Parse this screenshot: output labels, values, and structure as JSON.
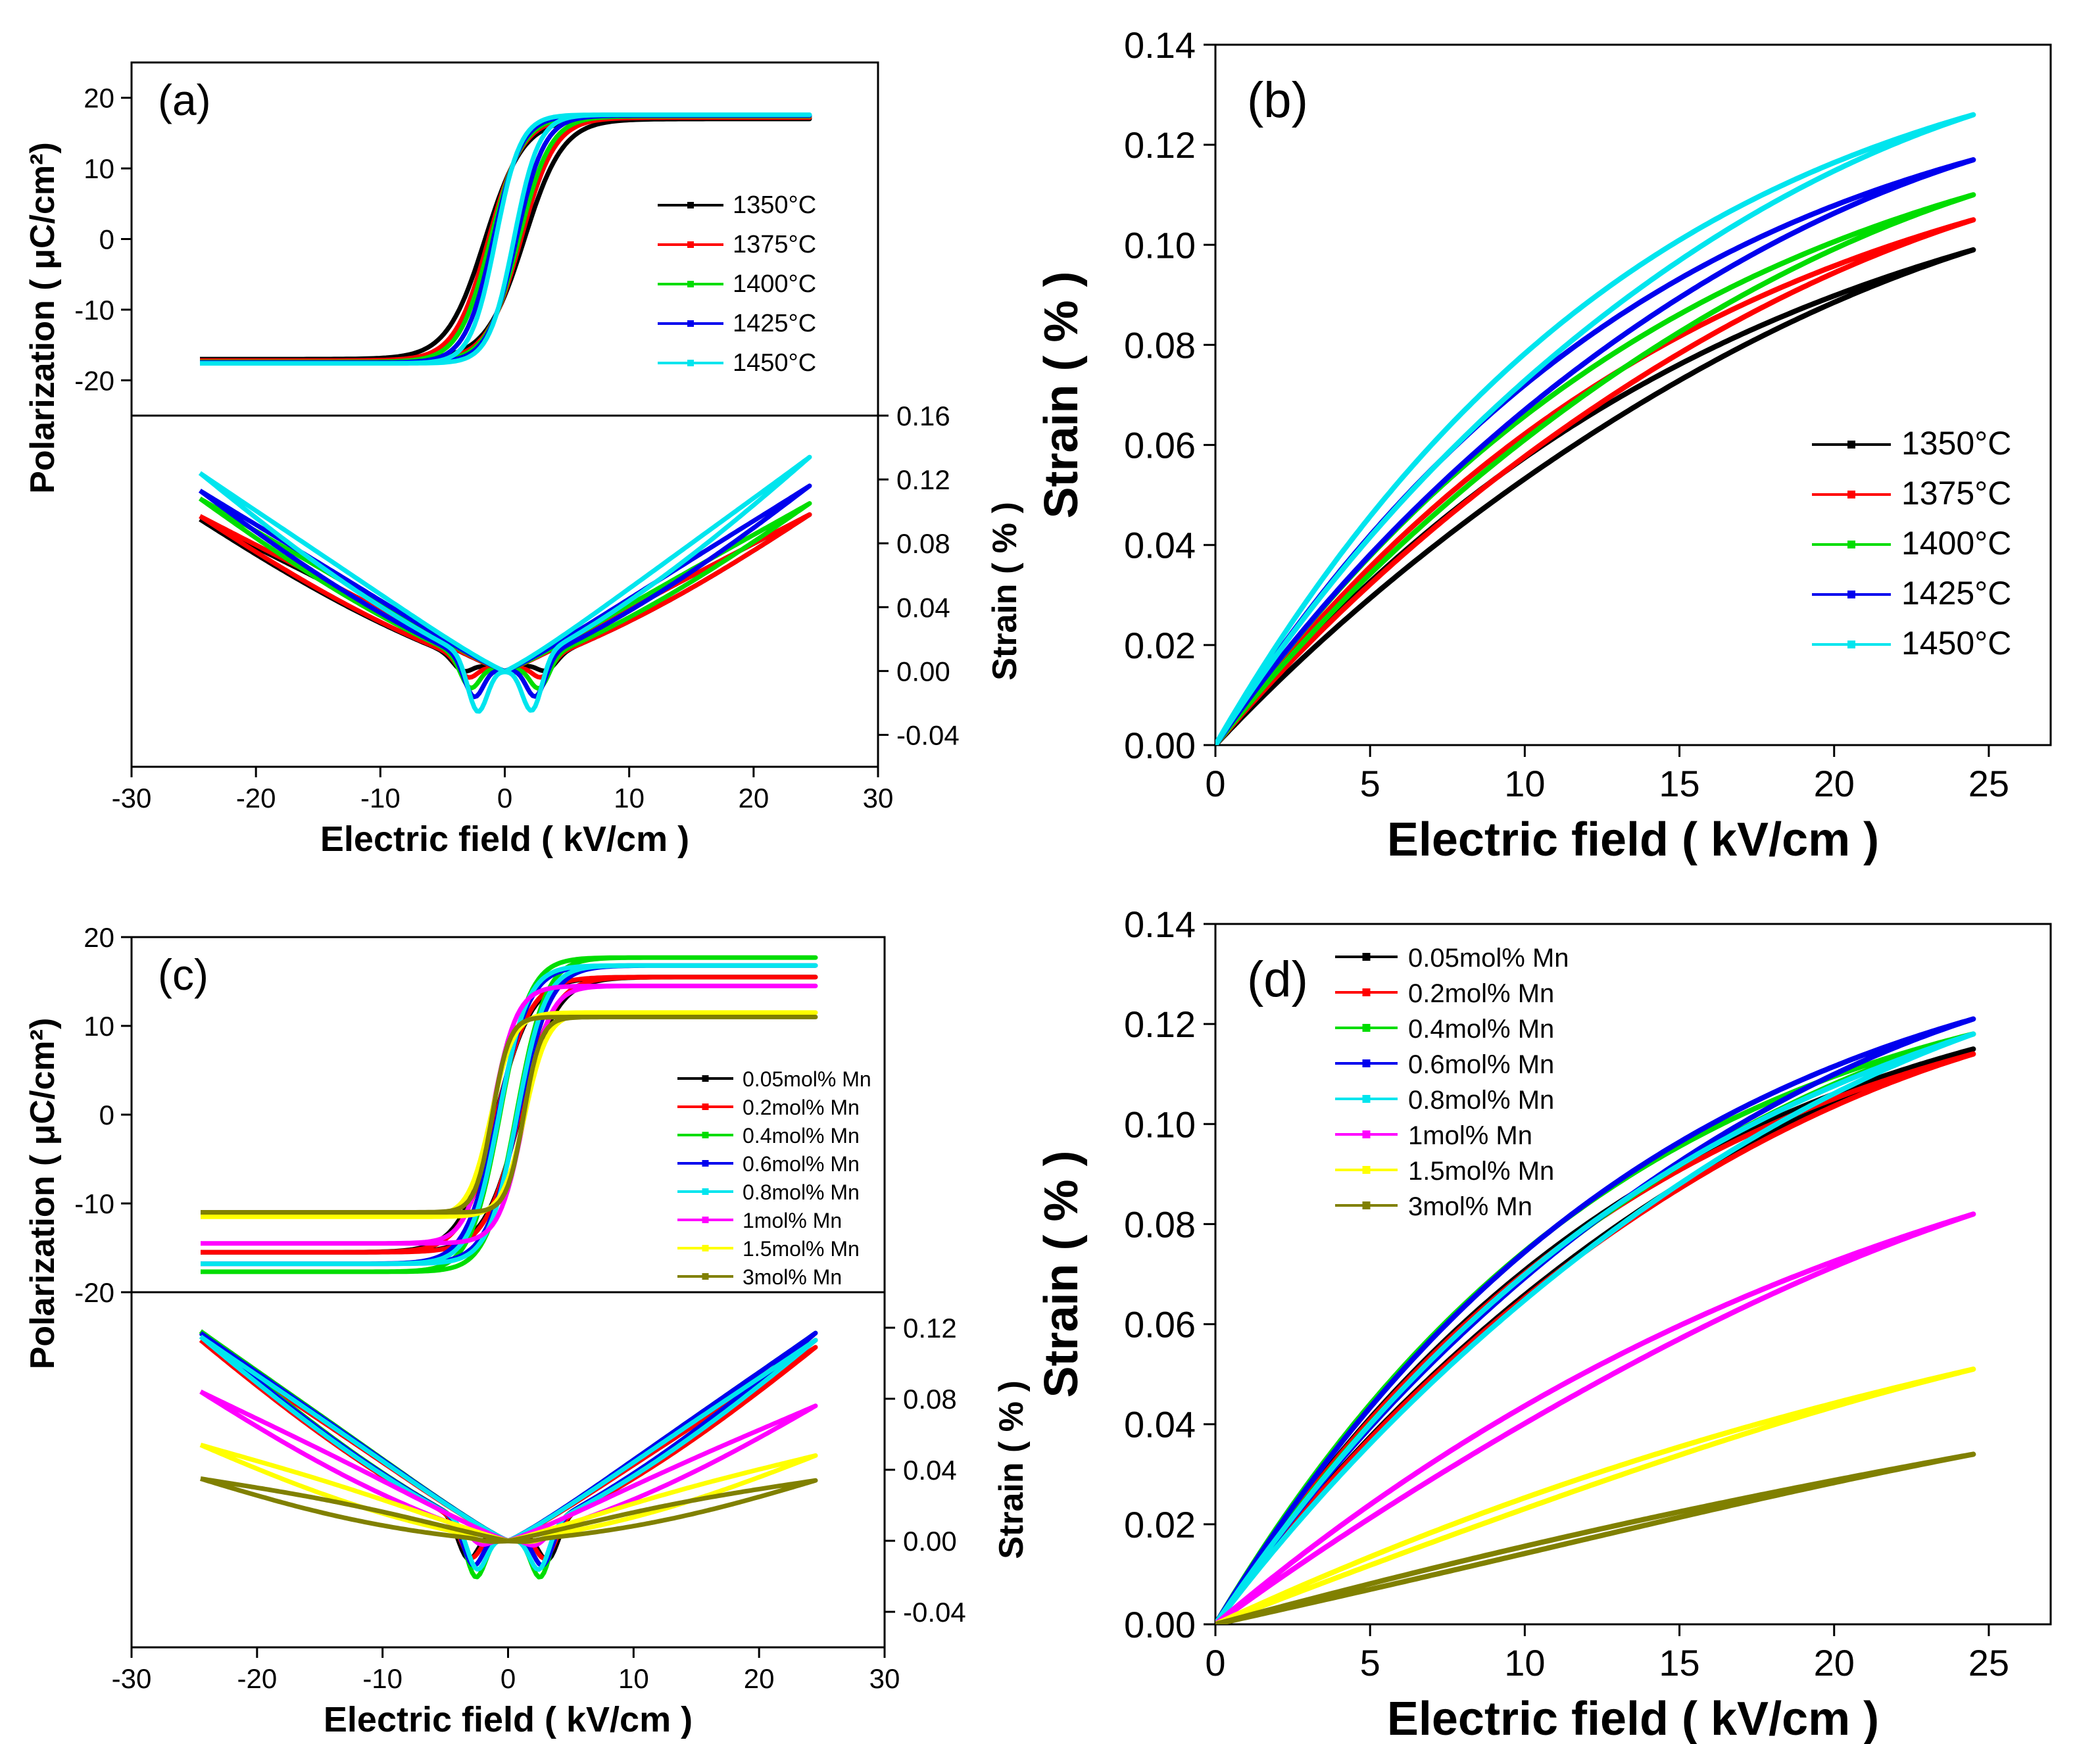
{
  "chart_data": [
    {
      "id": "a",
      "type": "line",
      "panel_label": "(a)",
      "xlabel": "Electric field ( kV/cm )",
      "ylabel_top": "Polarization ( μC/cm²)",
      "ylabel_bottom": "Strain ( % )",
      "xlim": [
        -30,
        30
      ],
      "x_ticks": [
        "-30",
        "-20",
        "-10",
        "0",
        "10",
        "20",
        "30"
      ],
      "top_ylim": [
        -25,
        25
      ],
      "top_y_ticks": [
        "-20",
        "-10",
        "0",
        "10",
        "20"
      ],
      "bottom_ylim": [
        -0.06,
        0.16
      ],
      "bottom_y_ticks": [
        "-0.04",
        "0.00",
        "0.04",
        "0.08",
        "0.12",
        "0.16"
      ],
      "legend_position": "right",
      "series": [
        {
          "name": "1350°C",
          "color": "#000000",
          "pr": 9,
          "ec": 3.4,
          "psat": 17.0,
          "smax_pos": 0.098,
          "smax_neg": 0.095,
          "dip": -0.008
        },
        {
          "name": "1375°C",
          "color": "#ff0000",
          "pr": 9.5,
          "ec": 3.0,
          "psat": 17.2,
          "smax_pos": 0.098,
          "smax_neg": 0.097,
          "dip": -0.011
        },
        {
          "name": "1400°C",
          "color": "#00dd00",
          "pr": 10,
          "ec": 2.8,
          "psat": 17.4,
          "smax_pos": 0.105,
          "smax_neg": 0.108,
          "dip": -0.018
        },
        {
          "name": "1425°C",
          "color": "#0000ee",
          "pr": 10.5,
          "ec": 2.5,
          "psat": 17.5,
          "smax_pos": 0.116,
          "smax_neg": 0.113,
          "dip": -0.023
        },
        {
          "name": "1450°C",
          "color": "#00e5ee",
          "pr": 11,
          "ec": 2.2,
          "psat": 17.6,
          "smax_pos": 0.134,
          "smax_neg": 0.124,
          "dip": -0.032
        }
      ]
    },
    {
      "id": "b",
      "type": "line",
      "panel_label": "(b)",
      "xlabel": "Electric field ( kV/cm )",
      "ylabel": "Strain ( % )",
      "xlim": [
        0,
        27
      ],
      "x_ticks": [
        "0",
        "5",
        "10",
        "15",
        "20",
        "25"
      ],
      "ylim": [
        0,
        0.14
      ],
      "y_ticks": [
        "0.00",
        "0.02",
        "0.04",
        "0.06",
        "0.08",
        "0.10",
        "0.12",
        "0.14"
      ],
      "legend_position": "lower-right",
      "series": [
        {
          "name": "1350°C",
          "color": "#000000",
          "smax": 0.099,
          "k": 1.3
        },
        {
          "name": "1375°C",
          "color": "#ff0000",
          "smax": 0.105,
          "k": 1.4
        },
        {
          "name": "1400°C",
          "color": "#00dd00",
          "smax": 0.11,
          "k": 1.45
        },
        {
          "name": "1425°C",
          "color": "#0000ee",
          "smax": 0.117,
          "k": 1.6
        },
        {
          "name": "1450°C",
          "color": "#00e5ee",
          "smax": 0.126,
          "k": 1.65
        }
      ]
    },
    {
      "id": "c",
      "type": "line",
      "panel_label": "(c)",
      "xlabel": "Electric field ( kV/cm )",
      "ylabel_top": "Polarization ( μC/cm²)",
      "ylabel_bottom": "Strain ( % )",
      "xlim": [
        -30,
        30
      ],
      "x_ticks": [
        "-30",
        "-20",
        "-10",
        "0",
        "10",
        "20",
        "30"
      ],
      "top_ylim": [
        -20,
        20
      ],
      "top_y_ticks": [
        "-20",
        "-10",
        "0",
        "10",
        "20"
      ],
      "bottom_ylim": [
        -0.06,
        0.14
      ],
      "bottom_y_ticks": [
        "-0.04",
        "0.00",
        "0.04",
        "0.08",
        "0.12"
      ],
      "legend_position": "right",
      "series": [
        {
          "name": "0.05mol% Mn",
          "color": "#000000",
          "pr": 10,
          "ec": 3.2,
          "psat": 15.5,
          "smax_pos": 0.113,
          "smax_neg": 0.118,
          "dip": -0.02
        },
        {
          "name": "0.2mol% Mn",
          "color": "#ff0000",
          "pr": 10,
          "ec": 3.0,
          "psat": 15.5,
          "smax_pos": 0.109,
          "smax_neg": 0.113,
          "dip": -0.018
        },
        {
          "name": "0.4mol% Mn",
          "color": "#00dd00",
          "pr": 12,
          "ec": 2.6,
          "psat": 17.7,
          "smax_pos": 0.117,
          "smax_neg": 0.118,
          "dip": -0.028
        },
        {
          "name": "0.6mol% Mn",
          "color": "#0000ee",
          "pr": 11,
          "ec": 2.8,
          "psat": 16.8,
          "smax_pos": 0.117,
          "smax_neg": 0.117,
          "dip": -0.022
        },
        {
          "name": "0.8mol% Mn",
          "color": "#00e5ee",
          "pr": 11,
          "ec": 2.5,
          "psat": 16.8,
          "smax_pos": 0.113,
          "smax_neg": 0.115,
          "dip": -0.023
        },
        {
          "name": "1mol% Mn",
          "color": "#ff00ff",
          "pr": 6,
          "ec": 2.2,
          "psat": 14.5,
          "smax_pos": 0.076,
          "smax_neg": 0.084,
          "dip": -0.006
        },
        {
          "name": "1.5mol% Mn",
          "color": "#ffff00",
          "pr": 4,
          "ec": 2.0,
          "psat": 11.5,
          "smax_pos": 0.048,
          "smax_neg": 0.054,
          "dip": -0.002
        },
        {
          "name": "3mol% Mn",
          "color": "#808000",
          "pr": 2,
          "ec": 1.5,
          "psat": 11.0,
          "smax_pos": 0.034,
          "smax_neg": 0.035,
          "dip": -0.001
        }
      ]
    },
    {
      "id": "d",
      "type": "line",
      "panel_label": "(d)",
      "xlabel": "Electric field ( kV/cm )",
      "ylabel": "Strain ( % )",
      "xlim": [
        0,
        27
      ],
      "x_ticks": [
        "0",
        "5",
        "10",
        "15",
        "20",
        "25"
      ],
      "ylim": [
        0,
        0.14
      ],
      "y_ticks": [
        "0.00",
        "0.02",
        "0.04",
        "0.06",
        "0.08",
        "0.10",
        "0.12",
        "0.14"
      ],
      "legend_position": "upper-left",
      "series": [
        {
          "name": "0.05mol% Mn",
          "color": "#000000",
          "smax": 0.115,
          "k": 1.6
        },
        {
          "name": "0.2mol% Mn",
          "color": "#ff0000",
          "smax": 0.114,
          "k": 1.6
        },
        {
          "name": "0.4mol% Mn",
          "color": "#00dd00",
          "smax": 0.118,
          "k": 1.75
        },
        {
          "name": "0.6mol% Mn",
          "color": "#0000ee",
          "smax": 0.121,
          "k": 1.6
        },
        {
          "name": "0.8mol% Mn",
          "color": "#00e5ee",
          "smax": 0.118,
          "k": 1.4
        },
        {
          "name": "1mol% Mn",
          "color": "#ff00ff",
          "smax": 0.082,
          "k": 0.9
        },
        {
          "name": "1.5mol% Mn",
          "color": "#ffff00",
          "smax": 0.051,
          "k": 0.6
        },
        {
          "name": "3mol% Mn",
          "color": "#808000",
          "smax": 0.034,
          "k": 0.3
        }
      ]
    }
  ]
}
